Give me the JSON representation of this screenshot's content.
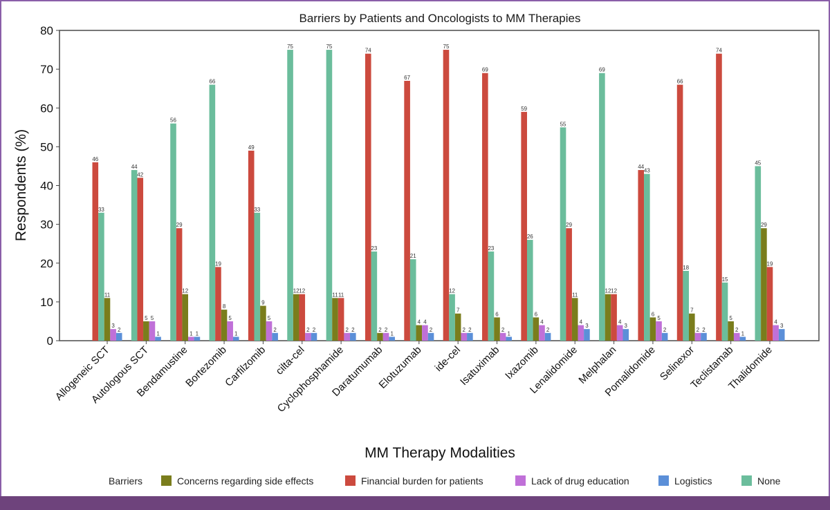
{
  "chart_data": {
    "type": "bar",
    "title": "Barriers by Patients and Oncologists to MM Therapies",
    "xlabel": "MM Therapy Modalities",
    "ylabel": "Respondents (%)",
    "ylim": [
      0,
      80
    ],
    "yticks": [
      "0",
      "10",
      "20",
      "30",
      "40",
      "50",
      "60",
      "70",
      "80"
    ],
    "grid": false,
    "legend_placement": "bottom",
    "legend_title": "Barriers",
    "bars_sorted_descending_within_group": true,
    "categories": [
      "Allogeneic SCT",
      "Autologous SCT",
      "Bendamustine",
      "Bortezomib",
      "Carfilzomib",
      "cilta-cel",
      "Cyclophosphamide",
      "Daratumumab",
      "Elotuzumab",
      "ide-cel",
      "Isatuximab",
      "Ixazomib",
      "Lenalidomide",
      "Melphalan",
      "Pomalidomide",
      "Selinexor",
      "Teclistamab",
      "Thalidomide"
    ],
    "series": [
      {
        "name": "Concerns regarding side effects",
        "color": "#7a7d1c",
        "values": [
          11,
          5,
          12,
          8,
          9,
          12,
          11,
          2,
          4,
          7,
          6,
          6,
          11,
          12,
          6,
          7,
          5,
          29
        ]
      },
      {
        "name": "Financial burden for patients",
        "color": "#cc4a3e",
        "values": [
          46,
          42,
          29,
          19,
          49,
          12,
          11,
          74,
          67,
          75,
          69,
          59,
          29,
          12,
          44,
          66,
          74,
          19
        ]
      },
      {
        "name": "Lack of drug education",
        "color": "#c070d8",
        "values": [
          3,
          5,
          1,
          5,
          5,
          2,
          2,
          2,
          4,
          2,
          2,
          4,
          4,
          4,
          5,
          2,
          2,
          4
        ]
      },
      {
        "name": "Logistics",
        "color": "#5b8fd8",
        "values": [
          2,
          1,
          1,
          1,
          2,
          2,
          2,
          1,
          2,
          2,
          1,
          2,
          3,
          3,
          2,
          2,
          1,
          3
        ]
      },
      {
        "name": "None",
        "color": "#6bbd9c",
        "values": [
          33,
          44,
          56,
          66,
          33,
          75,
          75,
          23,
          21,
          12,
          23,
          26,
          55,
          69,
          43,
          18,
          15,
          45
        ]
      }
    ]
  }
}
